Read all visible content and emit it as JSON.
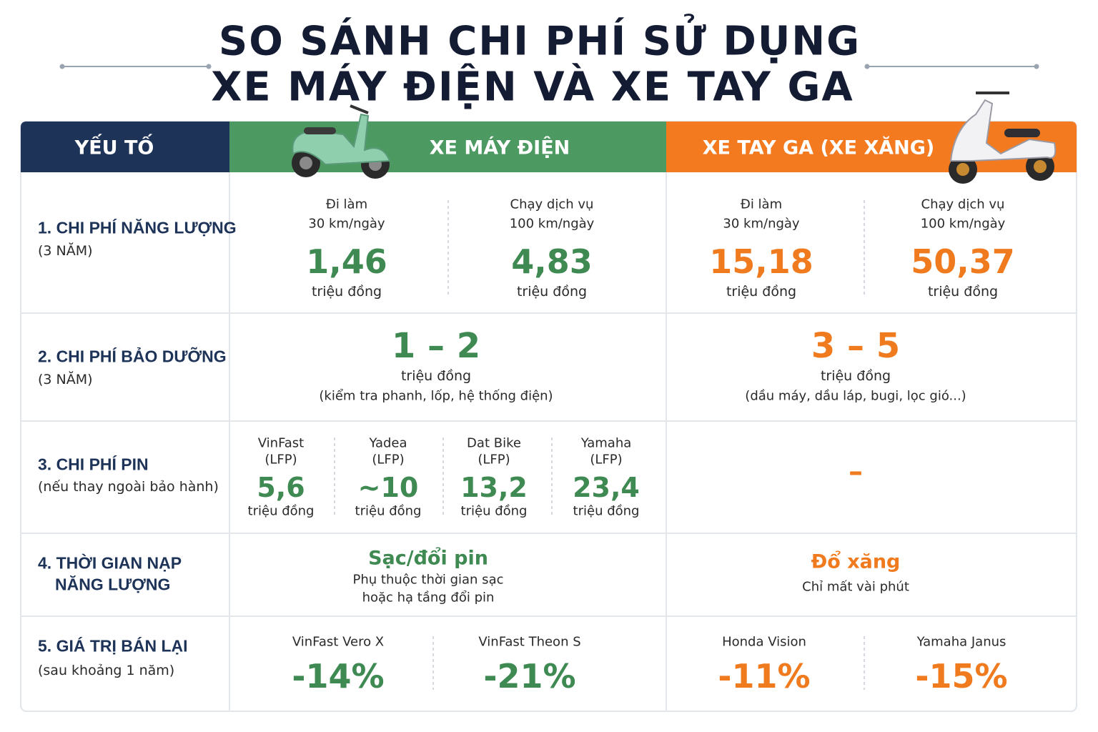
{
  "title": [
    "SO SÁNH CHI PHÍ SỬ DỤNG",
    "XE MÁY ĐIỆN VÀ XE TAY GA"
  ],
  "header": {
    "factor": "YẾU TỐ",
    "electric": "XE MÁY ĐIỆN",
    "gas": "XE TAY GA (XE XĂNG)"
  },
  "rows": [
    {
      "label": "1. CHI PHÍ NĂNG LƯỢNG",
      "note": "(3 NĂM)",
      "electric": [
        {
          "use": "Đi làm",
          "distance": "30 km/ngày",
          "value": "1,46",
          "unit": "triệu đồng"
        },
        {
          "use": "Chạy dịch vụ",
          "distance": "100 km/ngày",
          "value": "4,83",
          "unit": "triệu đồng"
        }
      ],
      "gas": [
        {
          "use": "Đi làm",
          "distance": "30 km/ngày",
          "value": "15,18",
          "unit": "triệu đồng"
        },
        {
          "use": "Chạy dịch vụ",
          "distance": "100 km/ngày",
          "value": "50,37",
          "unit": "triệu đồng"
        }
      ]
    },
    {
      "label": "2. CHI PHÍ BẢO DƯỠNG",
      "note": "(3 NĂM)",
      "electric": {
        "value": "1 – 2",
        "unit": "triệu đồng",
        "detail": "(kiểm tra phanh, lốp, hệ thống điện)"
      },
      "gas": {
        "value": "3 – 5",
        "unit": "triệu đồng",
        "detail": "(dầu máy, dầu láp, bugi, lọc gió...)"
      }
    },
    {
      "label": "3. CHI PHÍ PIN",
      "note": "(nếu thay ngoài bảo hành)",
      "electric": [
        {
          "brand": "VinFast",
          "chem": "(LFP)",
          "value": "5,6",
          "unit": "triệu đồng"
        },
        {
          "brand": "Yadea",
          "chem": "(LFP)",
          "value": "~10",
          "unit": "triệu đồng"
        },
        {
          "brand": "Dat Bike",
          "chem": "(LFP)",
          "value": "13,2",
          "unit": "triệu đồng"
        },
        {
          "brand": "Yamaha",
          "chem": "(LFP)",
          "value": "23,4",
          "unit": "triệu đồng"
        }
      ],
      "gas": "–"
    },
    {
      "label": "4. THỜI GIAN NẠP",
      "label_cont": "NĂNG LƯỢNG",
      "electric": {
        "value": "Sạc/đổi pin",
        "detail": [
          "Phụ thuộc thời gian sạc",
          "hoặc hạ tầng đổi pin"
        ]
      },
      "gas": {
        "value": "Đổ xăng",
        "detail": [
          "Chỉ mất vài phút"
        ]
      }
    },
    {
      "label": "5. GIÁ TRỊ BÁN LẠI",
      "note": "(sau khoảng 1 năm)",
      "electric": [
        {
          "model": "VinFast Vero X",
          "value": "-14%"
        },
        {
          "model": "VinFast Theon S",
          "value": "-21%"
        }
      ],
      "gas": [
        {
          "model": "Honda Vision",
          "value": "-11%"
        },
        {
          "model": "Yamaha Janus",
          "value": "-15%"
        }
      ]
    }
  ]
}
